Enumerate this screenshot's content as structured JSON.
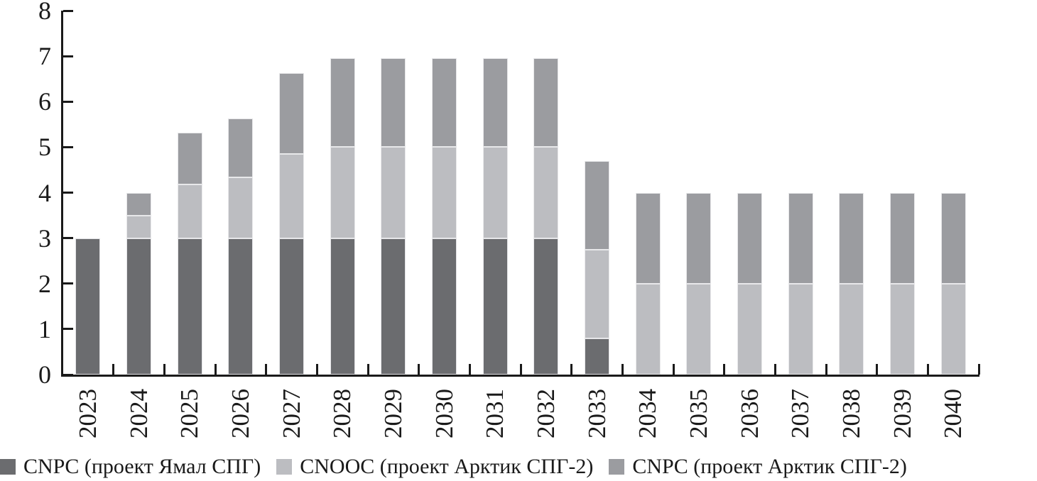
{
  "chart_data": {
    "type": "bar",
    "stacked": true,
    "title": "",
    "xlabel": "",
    "ylabel": "",
    "categories": [
      "2023",
      "2024",
      "2025",
      "2026",
      "2027",
      "2028",
      "2029",
      "2030",
      "2031",
      "2032",
      "2033",
      "2034",
      "2035",
      "2036",
      "2037",
      "2038",
      "2039",
      "2040"
    ],
    "series": [
      {
        "name": "CNPC (проект Ямал СПГ)",
        "color": "#6b6c6f",
        "values": [
          3,
          3,
          3,
          3,
          3,
          3,
          3,
          3,
          3,
          3,
          0.8,
          0,
          0,
          0,
          0,
          0,
          0,
          0
        ]
      },
      {
        "name": "CNOOC (проект Арктик СПГ-2)",
        "color": "#bcbdc1",
        "values": [
          0,
          0.5,
          1.18,
          1.33,
          1.85,
          2,
          2,
          2,
          2,
          2,
          1.95,
          2,
          2,
          2,
          2,
          2,
          2,
          2
        ]
      },
      {
        "name": "CNPC (проект Арктик СПГ-2)",
        "color": "#9b9ca0",
        "values": [
          0,
          0.5,
          1.14,
          1.3,
          1.78,
          1.95,
          1.95,
          1.95,
          1.95,
          1.95,
          1.95,
          2,
          2,
          2,
          2,
          2,
          2,
          2
        ]
      }
    ],
    "totals": [
      3,
      4,
      5.32,
      5.63,
      6.63,
      6.95,
      6.95,
      6.95,
      6.95,
      6.95,
      4.7,
      4,
      4,
      4,
      4,
      4,
      4,
      4
    ],
    "ylim": [
      0,
      8
    ],
    "yticks": [
      0,
      1,
      2,
      3,
      4,
      5,
      6,
      7,
      8
    ],
    "grid": false,
    "legend_position": "bottom",
    "axis_color": "#1a1a1a"
  }
}
